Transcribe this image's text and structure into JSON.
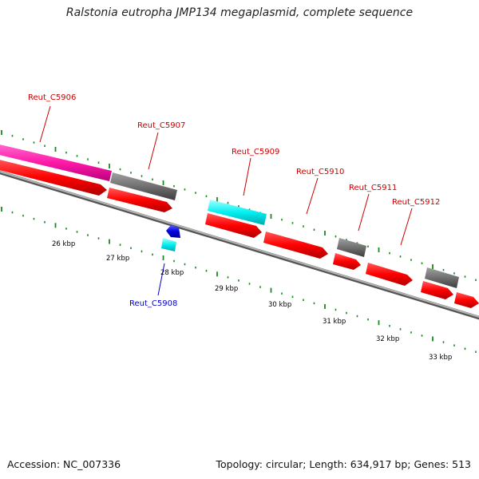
{
  "title": "Ralstonia eutropha JMP134 megaplasmid, complete sequence",
  "footer": {
    "accession": "Accession: NC_007336",
    "summary": "Topology: circular; Length: 634,917 bp; Genes: 513"
  },
  "colors": {
    "backbone": "#8a8a8a",
    "tick": "#1a8a1a",
    "label_forward": "#cc0000",
    "label_reverse": "#0000cc"
  },
  "kbp_labels": [
    "26 kbp",
    "27 kbp",
    "28 kbp",
    "29 kbp",
    "30 kbp",
    "31 kbp",
    "32 kbp",
    "33 kbp"
  ],
  "genes": [
    {
      "id": "Reut_C5906",
      "strand": "forward"
    },
    {
      "id": "Reut_C5907",
      "strand": "forward"
    },
    {
      "id": "Reut_C5908",
      "strand": "reverse"
    },
    {
      "id": "Reut_C5909",
      "strand": "forward"
    },
    {
      "id": "Reut_C5910",
      "strand": "forward"
    },
    {
      "id": "Reut_C5911",
      "strand": "forward"
    },
    {
      "id": "Reut_C5912",
      "strand": "forward"
    }
  ]
}
